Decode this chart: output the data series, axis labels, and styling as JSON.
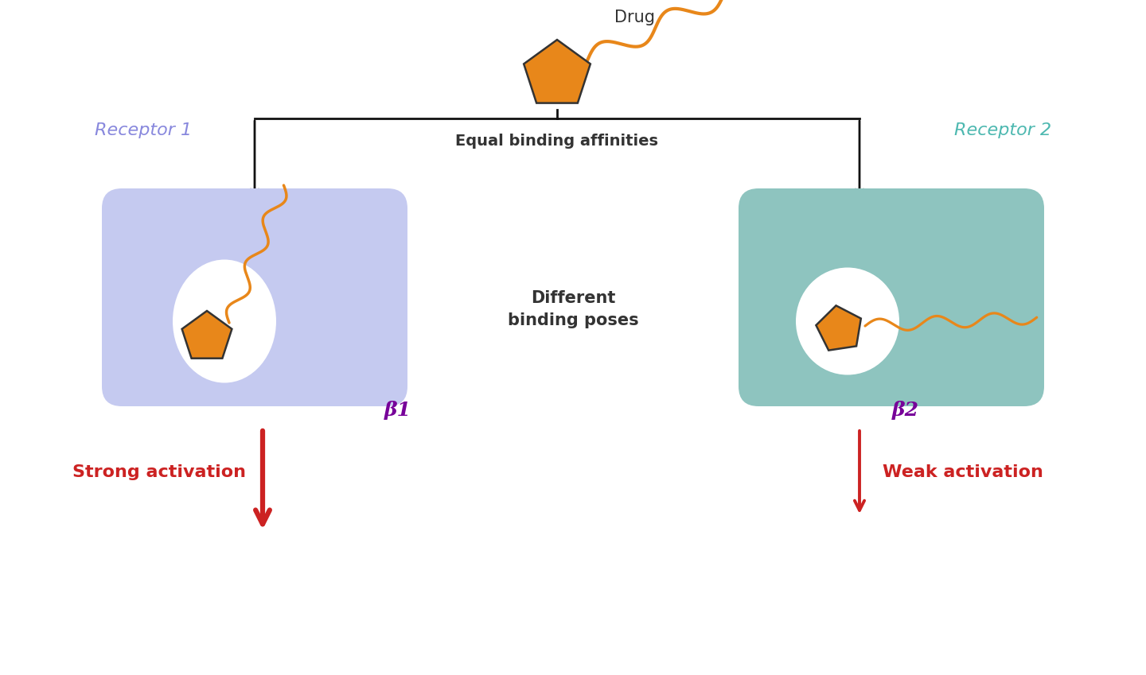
{
  "bg_color": "#ffffff",
  "drug_color": "#E8871A",
  "drug_outline": "#333333",
  "receptor1_bg": "#c5caf0",
  "receptor2_bg": "#8ec4bf",
  "receptor1_label_color": "#8888dd",
  "receptor2_label_color": "#4db8b0",
  "arrow_color": "#cc2222",
  "line_color": "#111111",
  "beta1_color": "#770099",
  "beta2_color": "#770099",
  "strong_activation_color": "#cc2222",
  "weak_activation_color": "#cc2222",
  "text_color": "#333333",
  "wavy_color": "#E8871A",
  "white_pocket": "#ffffff",
  "receptor1_label": "Receptor 1",
  "receptor2_label": "Receptor 2",
  "drug_label": "Drug",
  "equal_binding_label": "Equal binding affinities",
  "different_poses_label": "Different\nbinding poses",
  "strong_label": "Strong activation",
  "weak_label": "Weak activation",
  "beta1_label": "β1",
  "beta2_label": "β2",
  "box_edge_color": "#999999"
}
